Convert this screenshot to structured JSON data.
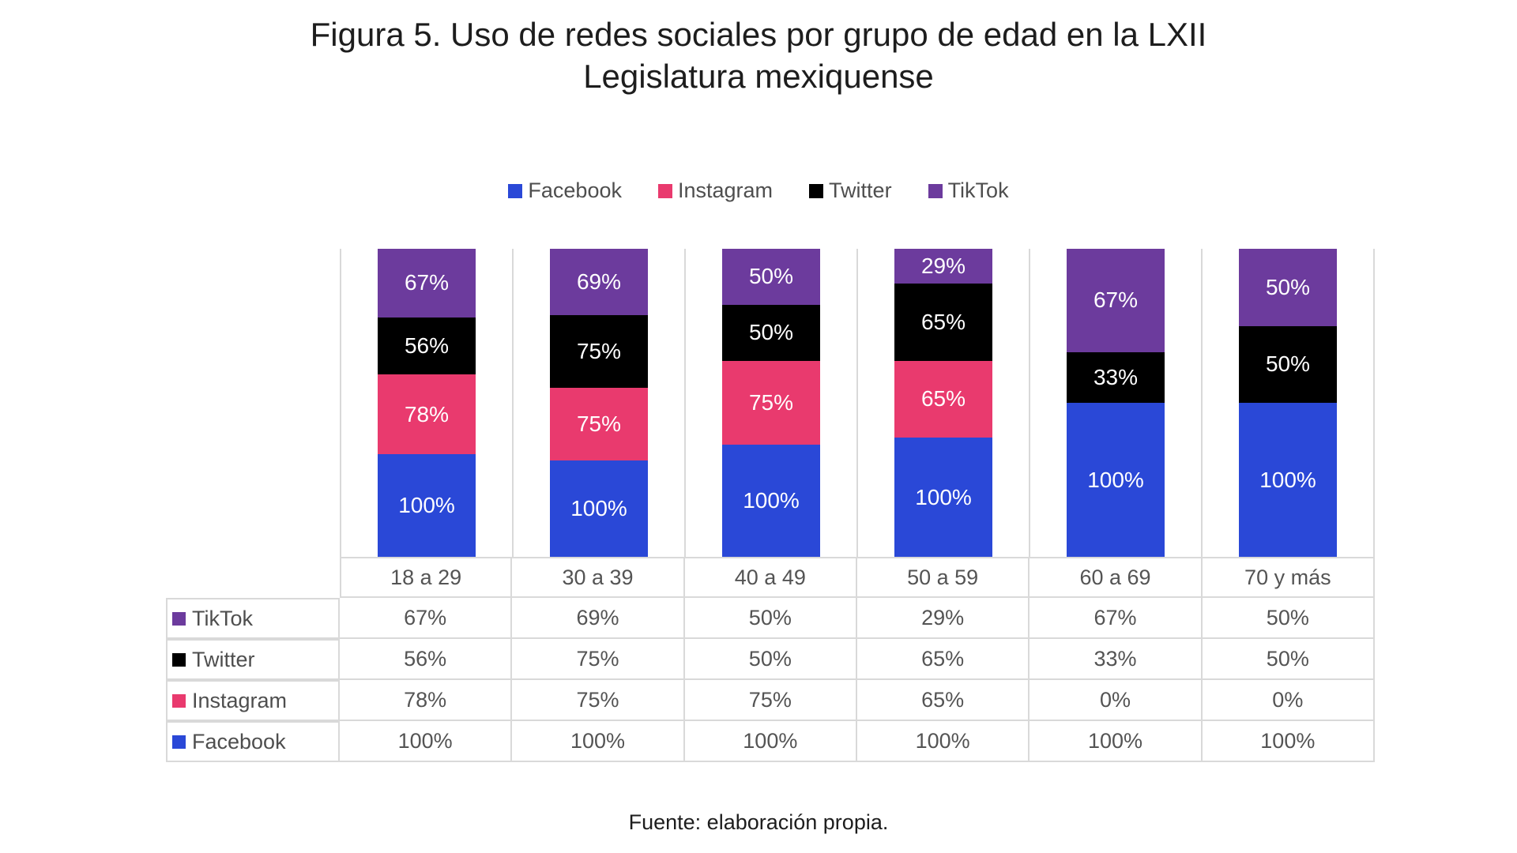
{
  "title": "Figura 5. Uso de redes sociales por grupo de edad en la LXII Legislatura mexiquense",
  "footer": "Fuente: elaboración propia.",
  "colors": {
    "facebook": "#2A48D7",
    "instagram": "#E93A6E",
    "twitter": "#000000",
    "tiktok": "#6C3B9D",
    "grid": "#D9D9D9",
    "axis_text": "#545454",
    "title_text": "#1D1D1D",
    "bar_label_text": "#FFFFFF"
  },
  "chart_data": {
    "type": "bar",
    "stacked": "100%",
    "title": "Figura 5. Uso de redes sociales por grupo de edad en la LXII Legislatura mexiquense",
    "xlabel": "",
    "ylabel": "",
    "grid": "vertical-separators-only",
    "legend_position": "top",
    "value_suffix": "%",
    "categories": [
      "18 a 29",
      "30 a 39",
      "40 a 49",
      "50 a 59",
      "60 a 69",
      "70 y más"
    ],
    "series": [
      {
        "name": "Facebook",
        "color": "#2A48D7",
        "values": [
          100,
          100,
          100,
          100,
          100,
          100
        ]
      },
      {
        "name": "Instagram",
        "color": "#E93A6E",
        "values": [
          78,
          75,
          75,
          65,
          0,
          0
        ]
      },
      {
        "name": "Twitter",
        "color": "#000000",
        "values": [
          56,
          75,
          50,
          65,
          33,
          50
        ]
      },
      {
        "name": "TikTok",
        "color": "#6C3B9D",
        "values": [
          67,
          69,
          50,
          29,
          67,
          50
        ]
      }
    ],
    "stack_order_bottom_to_top": [
      "Facebook",
      "Instagram",
      "Twitter",
      "TikTok"
    ],
    "legend_order": [
      "Facebook",
      "Instagram",
      "Twitter",
      "TikTok"
    ],
    "table_row_order": [
      "TikTok",
      "Twitter",
      "Instagram",
      "Facebook"
    ],
    "source_note": "Fuente: elaboración propia."
  }
}
